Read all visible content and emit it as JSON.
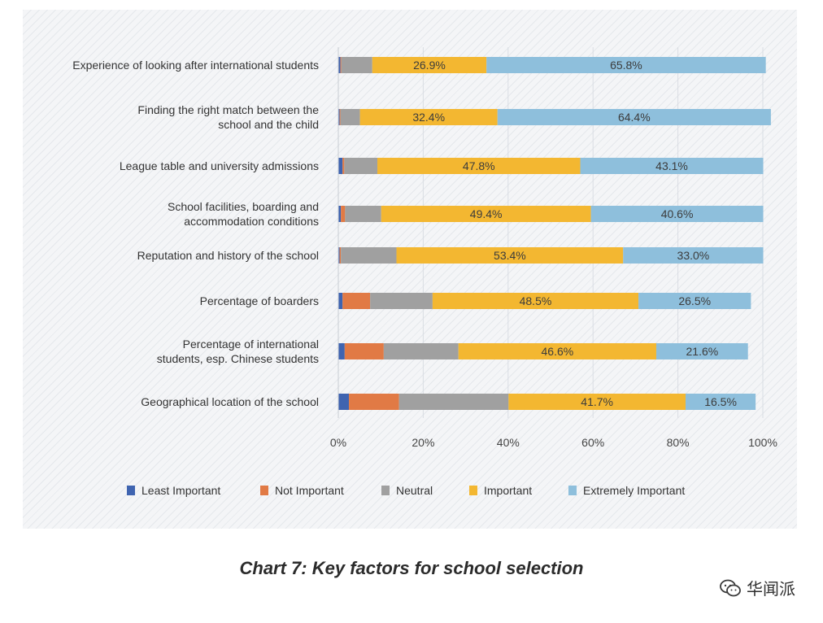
{
  "caption": "Chart 7: Key factors for school selection",
  "watermark": "华闻派",
  "chart_data": {
    "type": "bar",
    "orientation": "horizontal",
    "stacked": true,
    "normalized": true,
    "title": "Chart 7: Key factors for school selection",
    "xlim": [
      0,
      100
    ],
    "x_ticks": [
      "0%",
      "20%",
      "40%",
      "60%",
      "80%",
      "100%"
    ],
    "grid": true,
    "legend_position": "bottom",
    "categories": [
      [
        "Experience of looking after international students"
      ],
      [
        "Finding the right match between the",
        "school and the child"
      ],
      [
        "League table and university admissions"
      ],
      [
        "School facilities, boarding and",
        "accommodation conditions"
      ],
      [
        "Reputation and history of the school"
      ],
      [
        "Percentage of boarders"
      ],
      [
        "Percentage of international",
        "students, esp. Chinese students"
      ],
      [
        "Geographical location of the school"
      ]
    ],
    "series": [
      {
        "name": "Least Important",
        "color": "#3f64b0",
        "values": [
          0.5,
          0.3,
          1.0,
          0.6,
          0.3,
          1.0,
          1.5,
          2.5
        ],
        "labels": [
          "",
          "",
          "",
          "",
          "",
          "",
          "",
          ""
        ]
      },
      {
        "name": "Not Important",
        "color": "#e17a45",
        "values": [
          0.2,
          0.2,
          0.4,
          1.0,
          0.3,
          6.5,
          9.2,
          11.8
        ],
        "labels": [
          "",
          "",
          "",
          "",
          "",
          "",
          "",
          ""
        ]
      },
      {
        "name": "Neutral",
        "color": "#a0a0a0",
        "values": [
          7.3,
          4.6,
          7.8,
          8.5,
          13.1,
          14.7,
          17.6,
          25.8
        ],
        "labels": [
          "",
          "",
          "",
          "",
          "",
          "",
          "",
          ""
        ]
      },
      {
        "name": "Important",
        "color": "#f3b731",
        "values": [
          26.9,
          32.4,
          47.8,
          49.4,
          53.4,
          48.5,
          46.6,
          41.7
        ],
        "labels": [
          "26.9%",
          "32.4%",
          "47.8%",
          "49.4%",
          "53.4%",
          "48.5%",
          "46.6%",
          "41.7%"
        ]
      },
      {
        "name": "Extremely Important",
        "color": "#8ebfdc",
        "values": [
          65.8,
          64.4,
          43.1,
          40.6,
          33.0,
          26.5,
          21.6,
          16.5
        ],
        "labels": [
          "65.8%",
          "64.4%",
          "43.1%",
          "40.6%",
          "33.0%",
          "26.5%",
          "21.6%",
          "16.5%"
        ]
      }
    ]
  }
}
